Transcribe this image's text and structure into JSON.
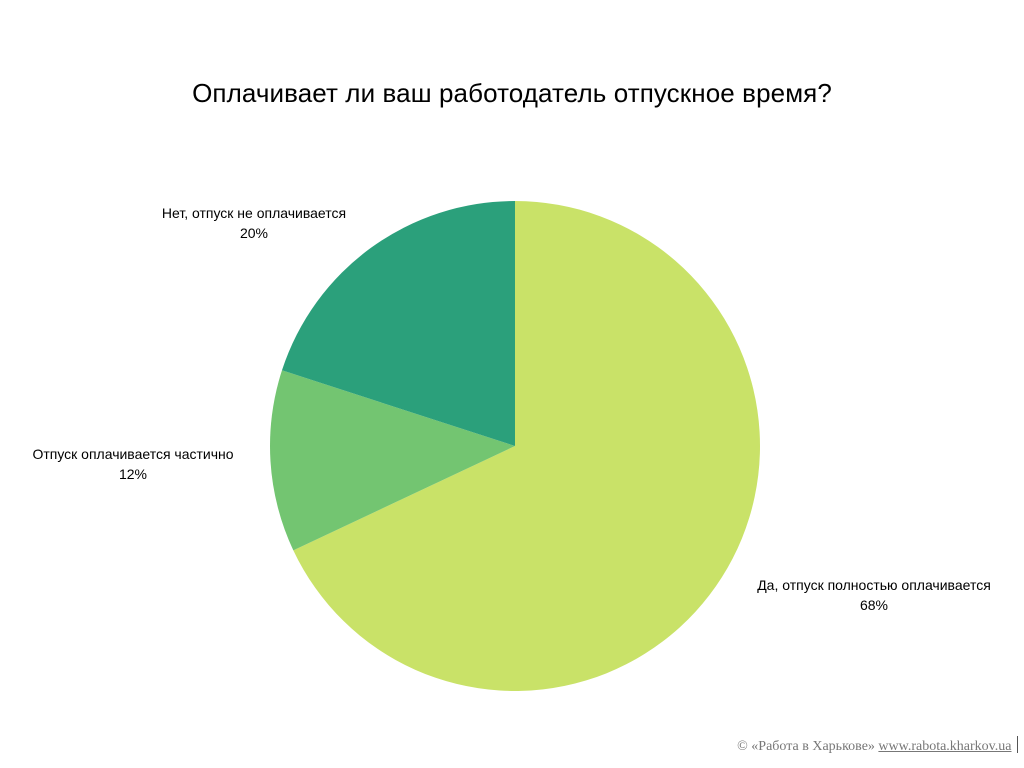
{
  "chart_data": {
    "type": "pie",
    "title": "Оплачивает ли ваш работодатель отпускное время?",
    "slices": [
      {
        "label": "Да, отпуск полностью оплачивается",
        "value": 68,
        "value_label": "68%",
        "color": "#C9E268"
      },
      {
        "label": "Отпуск оплачивается частично",
        "value": 12,
        "value_label": "12%",
        "color": "#73C571"
      },
      {
        "label": "Нет, отпуск не оплачивается",
        "value": 20,
        "value_label": "20%",
        "color": "#2BA07B"
      }
    ],
    "start": "12 o'clock",
    "direction": "clockwise",
    "legend": "none"
  },
  "footer": {
    "copyright_text": "© «Работа в Харькове»",
    "site_link": "www.rabota.kharkov.ua"
  }
}
